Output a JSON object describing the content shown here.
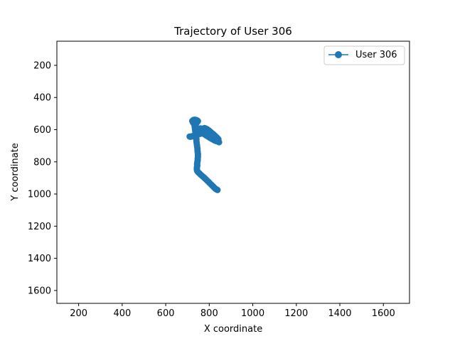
{
  "chart_data": {
    "type": "line",
    "title": "Trajectory of User 306",
    "xlabel": "X coordinate",
    "ylabel": "Y coordinate",
    "xlim": [
      100,
      1720
    ],
    "ylim": [
      1680,
      50
    ],
    "y_inverted": true,
    "grid": false,
    "legend_position": "top-right",
    "xticks": [
      200,
      400,
      600,
      800,
      1000,
      1200,
      1400,
      1600
    ],
    "yticks": [
      200,
      400,
      600,
      800,
      1000,
      1200,
      1400,
      1600
    ],
    "series": [
      {
        "name": "User 306",
        "color": "#1f77b4",
        "marker": "circle",
        "points": [
          [
            838,
            975
          ],
          [
            834,
            972
          ],
          [
            829,
            968
          ],
          [
            825,
            963
          ],
          [
            820,
            956
          ],
          [
            814,
            948
          ],
          [
            808,
            940
          ],
          [
            802,
            932
          ],
          [
            796,
            924
          ],
          [
            790,
            916
          ],
          [
            784,
            908
          ],
          [
            778,
            900
          ],
          [
            772,
            893
          ],
          [
            766,
            886
          ],
          [
            760,
            879
          ],
          [
            755,
            872
          ],
          [
            750,
            866
          ],
          [
            746,
            860
          ],
          [
            744,
            854
          ],
          [
            743,
            846
          ],
          [
            743,
            838
          ],
          [
            744,
            830
          ],
          [
            745,
            822
          ],
          [
            744,
            814
          ],
          [
            745,
            806
          ],
          [
            746,
            798
          ],
          [
            747,
            790
          ],
          [
            747,
            780
          ],
          [
            748,
            770
          ],
          [
            748,
            760
          ],
          [
            748,
            750
          ],
          [
            747,
            740
          ],
          [
            746,
            730
          ],
          [
            746,
            720
          ],
          [
            745,
            710
          ],
          [
            744,
            700
          ],
          [
            743,
            690
          ],
          [
            742,
            680
          ],
          [
            741,
            670
          ],
          [
            741,
            660
          ],
          [
            740,
            650
          ],
          [
            739,
            640
          ],
          [
            738,
            630
          ],
          [
            737,
            620
          ],
          [
            736,
            610
          ],
          [
            735,
            600
          ],
          [
            734,
            590
          ],
          [
            733,
            580
          ],
          [
            735,
            572
          ],
          [
            738,
            565
          ],
          [
            742,
            558
          ],
          [
            745,
            552
          ],
          [
            748,
            547
          ],
          [
            745,
            543
          ],
          [
            740,
            540
          ],
          [
            733,
            538
          ],
          [
            727,
            540
          ],
          [
            722,
            546
          ],
          [
            725,
            555
          ],
          [
            730,
            565
          ],
          [
            735,
            576
          ],
          [
            738,
            588
          ],
          [
            740,
            600
          ],
          [
            741,
            612
          ],
          [
            740,
            622
          ],
          [
            736,
            631
          ],
          [
            730,
            638
          ],
          [
            722,
            642
          ],
          [
            714,
            644
          ],
          [
            710,
            643
          ],
          [
            720,
            641
          ],
          [
            733,
            637
          ],
          [
            746,
            633
          ],
          [
            758,
            626
          ],
          [
            766,
            618
          ],
          [
            770,
            608
          ],
          [
            774,
            598
          ],
          [
            778,
            590
          ],
          [
            784,
            593
          ],
          [
            790,
            597
          ],
          [
            796,
            603
          ],
          [
            802,
            609
          ],
          [
            808,
            616
          ],
          [
            814,
            623
          ],
          [
            820,
            630
          ],
          [
            826,
            637
          ],
          [
            832,
            645
          ],
          [
            838,
            653
          ],
          [
            842,
            660
          ],
          [
            840,
            668
          ],
          [
            834,
            672
          ],
          [
            826,
            668
          ],
          [
            818,
            662
          ],
          [
            810,
            656
          ],
          [
            802,
            650
          ],
          [
            794,
            643
          ],
          [
            786,
            636
          ],
          [
            778,
            629
          ],
          [
            770,
            622
          ],
          [
            762,
            615
          ],
          [
            756,
            608
          ],
          [
            752,
            600
          ],
          [
            754,
            594
          ],
          [
            760,
            592
          ],
          [
            768,
            594
          ],
          [
            776,
            598
          ],
          [
            784,
            605
          ],
          [
            792,
            612
          ],
          [
            800,
            620
          ],
          [
            808,
            628
          ],
          [
            816,
            636
          ],
          [
            824,
            645
          ],
          [
            832,
            654
          ],
          [
            838,
            664
          ],
          [
            843,
            674
          ],
          [
            845,
            678
          ]
        ]
      }
    ]
  }
}
